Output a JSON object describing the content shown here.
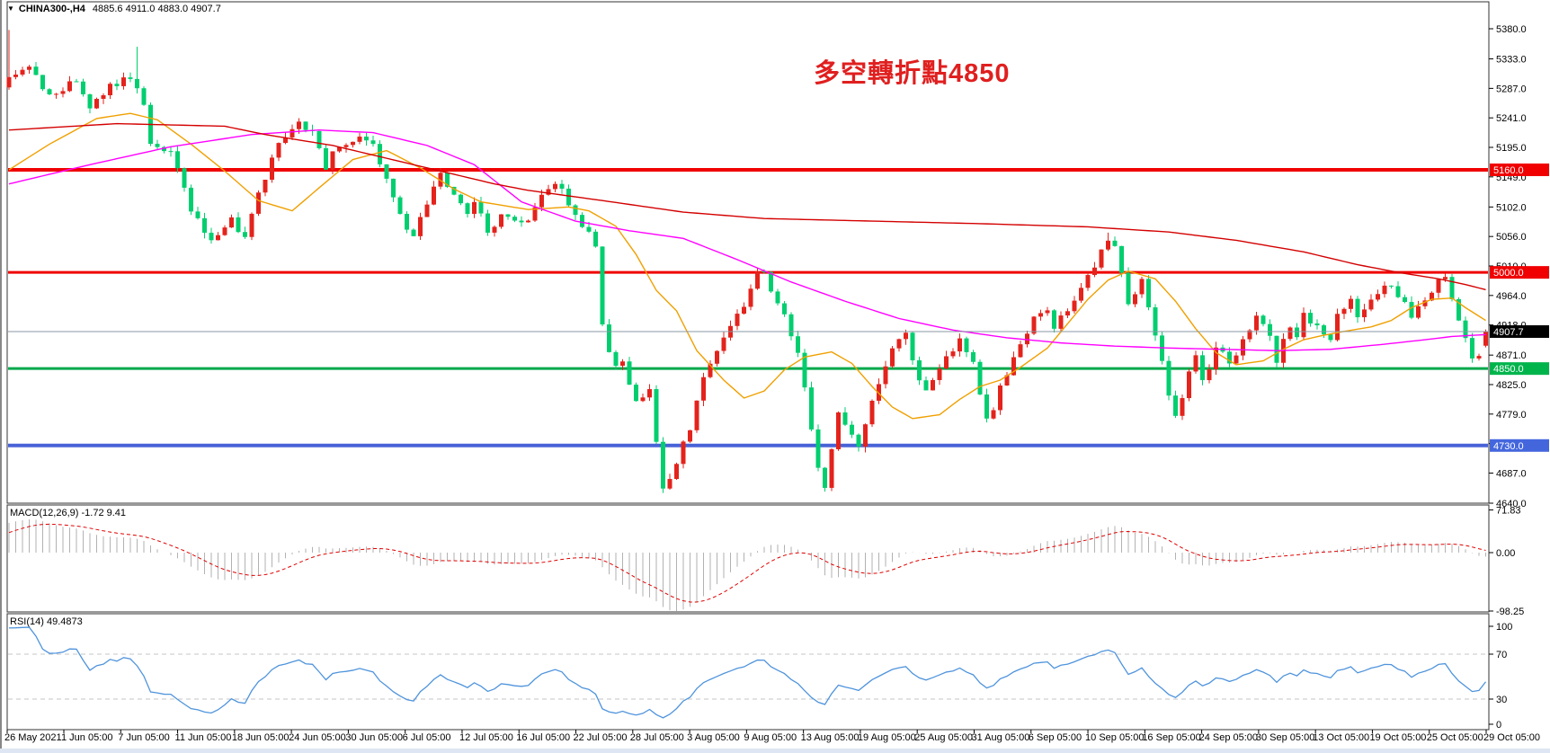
{
  "header": {
    "symbol": "CHINA300-,H4",
    "ohlc": "4885.6 4911.0 4883.0 4907.7",
    "dropdown_icon": "symbol-dropdown"
  },
  "annotation": {
    "text": "多空轉折點4850",
    "color": "#e01f1f"
  },
  "colors": {
    "candle_up": "#e3231c",
    "candle_down": "#00ce6f",
    "ma_fast": "#f0a000",
    "ma_mid": "#ff00ff",
    "ma_slow": "#d40000",
    "macd_hist": "#b2b2b2",
    "macd_signal": "#e00000",
    "rsi_line": "#4f94dc",
    "guide_dash": "#c4c4c4",
    "panel_border": "#333333",
    "axis_text": "#000000",
    "bottom_strip": "#dde6f2"
  },
  "chart_data": {
    "type": "candlestick",
    "symbol": "CHINA300-",
    "timeframe": "H4",
    "last_candle": {
      "open": 4885.6,
      "high": 4911.0,
      "low": 4883.0,
      "close": 4907.7
    },
    "current_price": {
      "value": 4907.7,
      "label": "4907.7",
      "line_color": "#8897a6",
      "badge_bg": "#000000",
      "badge_fg": "#ffffff"
    },
    "price_axis": {
      "ticks": [
        5380,
        5333,
        5287,
        5241,
        5195,
        5149,
        5102,
        5056,
        5010,
        4964,
        4918,
        4871,
        4825,
        4779,
        4733,
        4687,
        4640
      ],
      "top_value": 5380,
      "bottom_value": 4640
    },
    "levels": [
      {
        "value": 5160.0,
        "label": "5160.0",
        "line_color": "#f00000",
        "line_width": 4,
        "badge_bg": "#f00000",
        "badge_fg": "#ffffff"
      },
      {
        "value": 5000.0,
        "label": "5000.0",
        "line_color": "#f00000",
        "line_width": 3,
        "badge_bg": "#f00000",
        "badge_fg": "#ffffff"
      },
      {
        "value": 4850.0,
        "label": "4850.0",
        "line_color": "#00a84a",
        "line_width": 3,
        "badge_bg": "#00b44c",
        "badge_fg": "#ffffff"
      },
      {
        "value": 4730.0,
        "label": "4730.0",
        "line_color": "#4862d8",
        "line_width": 4,
        "badge_bg": "#4466dd",
        "badge_fg": "#ffffff"
      }
    ],
    "x_labels": [
      "26 May 2021",
      "1 Jun 05:00",
      "7 Jun 05:00",
      "11 Jun 05:00",
      "18 Jun 05:00",
      "24 Jun 05:00",
      "30 Jun 05:00",
      "6 Jul 05:00",
      "12 Jul 05:00",
      "16 Jul 05:00",
      "22 Jul 05:00",
      "28 Jul 05:00",
      "3 Aug 05:00",
      "9 Aug 05:00",
      "13 Aug 05:00",
      "19 Aug 05:00",
      "25 Aug 05:00",
      "31 Aug 05:00",
      "6 Sep 05:00",
      "10 Sep 05:00",
      "16 Sep 05:00",
      "24 Sep 05:00",
      "30 Sep 05:00",
      "13 Oct 05:00",
      "19 Oct 05:00",
      "25 Oct 05:00",
      "29 Oct 05:00"
    ],
    "candle_count": 220,
    "price_path": [
      [
        0,
        5300
      ],
      [
        3,
        5318
      ],
      [
        6,
        5275
      ],
      [
        10,
        5300
      ],
      [
        12,
        5252
      ],
      [
        15,
        5290
      ],
      [
        18,
        5305
      ],
      [
        20,
        5265
      ],
      [
        21,
        5200
      ],
      [
        24,
        5190
      ],
      [
        27,
        5100
      ],
      [
        30,
        5050
      ],
      [
        33,
        5080
      ],
      [
        35,
        5055
      ],
      [
        37,
        5120
      ],
      [
        40,
        5200
      ],
      [
        43,
        5240
      ],
      [
        45,
        5215
      ],
      [
        47,
        5165
      ],
      [
        49,
        5200
      ],
      [
        52,
        5215
      ],
      [
        54,
        5195
      ],
      [
        56,
        5140
      ],
      [
        58,
        5085
      ],
      [
        60,
        5055
      ],
      [
        62,
        5110
      ],
      [
        64,
        5150
      ],
      [
        66,
        5125
      ],
      [
        68,
        5090
      ],
      [
        69,
        5115
      ],
      [
        71,
        5060
      ],
      [
        73,
        5095
      ],
      [
        75,
        5075
      ],
      [
        77,
        5082
      ],
      [
        79,
        5120
      ],
      [
        81,
        5140
      ],
      [
        83,
        5110
      ],
      [
        85,
        5070
      ],
      [
        87,
        5045
      ],
      [
        88,
        4915
      ],
      [
        89,
        4880
      ],
      [
        90,
        4860
      ],
      [
        91,
        4855
      ],
      [
        93,
        4805
      ],
      [
        95,
        4815
      ],
      [
        97,
        4668
      ],
      [
        99,
        4700
      ],
      [
        101,
        4760
      ],
      [
        103,
        4840
      ],
      [
        105,
        4880
      ],
      [
        107,
        4915
      ],
      [
        109,
        4950
      ],
      [
        111,
        4995
      ],
      [
        112,
        5005
      ],
      [
        113,
        4975
      ],
      [
        115,
        4930
      ],
      [
        117,
        4870
      ],
      [
        118,
        4820
      ],
      [
        119,
        4750
      ],
      [
        120,
        4695
      ],
      [
        121,
        4670
      ],
      [
        122,
        4720
      ],
      [
        123,
        4780
      ],
      [
        124,
        4760
      ],
      [
        126,
        4730
      ],
      [
        128,
        4795
      ],
      [
        129,
        4830
      ],
      [
        131,
        4880
      ],
      [
        133,
        4900
      ],
      [
        134,
        4860
      ],
      [
        136,
        4810
      ],
      [
        137,
        4830
      ],
      [
        139,
        4865
      ],
      [
        141,
        4895
      ],
      [
        143,
        4855
      ],
      [
        145,
        4775
      ],
      [
        146,
        4790
      ],
      [
        148,
        4845
      ],
      [
        150,
        4890
      ],
      [
        152,
        4930
      ],
      [
        154,
        4940
      ],
      [
        155,
        4915
      ],
      [
        157,
        4945
      ],
      [
        159,
        4975
      ],
      [
        161,
        5010
      ],
      [
        162,
        5035
      ],
      [
        163,
        5050
      ],
      [
        164,
        5040
      ],
      [
        165,
        5005
      ],
      [
        166,
        4955
      ],
      [
        168,
        4985
      ],
      [
        169,
        4950
      ],
      [
        170,
        4900
      ],
      [
        171,
        4862
      ],
      [
        172,
        4810
      ],
      [
        173,
        4780
      ],
      [
        174,
        4800
      ],
      [
        175,
        4840
      ],
      [
        176,
        4865
      ],
      [
        177,
        4830
      ],
      [
        178,
        4855
      ],
      [
        179,
        4885
      ],
      [
        181,
        4855
      ],
      [
        183,
        4895
      ],
      [
        185,
        4935
      ],
      [
        186,
        4925
      ],
      [
        187,
        4895
      ],
      [
        188,
        4865
      ],
      [
        189,
        4890
      ],
      [
        190,
        4920
      ],
      [
        191,
        4895
      ],
      [
        192,
        4935
      ],
      [
        194,
        4915
      ],
      [
        196,
        4890
      ],
      [
        197,
        4930
      ],
      [
        199,
        4955
      ],
      [
        200,
        4935
      ],
      [
        202,
        4960
      ],
      [
        204,
        4985
      ],
      [
        205,
        4975
      ],
      [
        206,
        4960
      ],
      [
        208,
        4935
      ],
      [
        210,
        4960
      ],
      [
        212,
        4985
      ],
      [
        213,
        4990
      ],
      [
        214,
        4960
      ],
      [
        215,
        4930
      ],
      [
        216,
        4900
      ],
      [
        217,
        4870
      ],
      [
        218,
        4865
      ],
      [
        219,
        4907.7
      ]
    ],
    "pre_path": [
      [
        -104,
        5270
      ],
      [
        -80,
        5330
      ],
      [
        -60,
        5150
      ],
      [
        -40,
        5040
      ],
      [
        -24,
        5080
      ],
      [
        -12,
        5080
      ],
      [
        -4,
        5250
      ]
    ],
    "wick_overrides": [
      [
        0,
        "h",
        5378
      ],
      [
        19,
        "h",
        5352
      ],
      [
        97,
        "l",
        4656
      ],
      [
        121,
        "l",
        4658
      ],
      [
        163,
        "h",
        5062
      ],
      [
        213,
        "h",
        4998
      ]
    ],
    "moving_averages": [
      {
        "name": "ma-fast",
        "color": "#f0a000",
        "points": [
          [
            0,
            5160
          ],
          [
            6,
            5200
          ],
          [
            13,
            5240
          ],
          [
            18,
            5248
          ],
          [
            22,
            5238
          ],
          [
            27,
            5200
          ],
          [
            32,
            5158
          ],
          [
            37,
            5112
          ],
          [
            42,
            5096
          ],
          [
            46,
            5132
          ],
          [
            51,
            5176
          ],
          [
            56,
            5190
          ],
          [
            61,
            5163
          ],
          [
            66,
            5130
          ],
          [
            70,
            5110
          ],
          [
            77,
            5098
          ],
          [
            83,
            5102
          ],
          [
            86,
            5096
          ],
          [
            90,
            5072
          ],
          [
            93,
            5028
          ],
          [
            96,
            4972
          ],
          [
            99,
            4940
          ],
          [
            102,
            4878
          ],
          [
            106,
            4832
          ],
          [
            109,
            4804
          ],
          [
            112,
            4815
          ],
          [
            115,
            4848
          ],
          [
            118,
            4868
          ],
          [
            122,
            4876
          ],
          [
            125,
            4858
          ],
          [
            128,
            4822
          ],
          [
            131,
            4790
          ],
          [
            134,
            4772
          ],
          [
            138,
            4778
          ],
          [
            141,
            4802
          ],
          [
            144,
            4822
          ],
          [
            147,
            4832
          ],
          [
            150,
            4852
          ],
          [
            154,
            4882
          ],
          [
            157,
            4920
          ],
          [
            160,
            4958
          ],
          [
            163,
            4988
          ],
          [
            166,
            5002
          ],
          [
            170,
            4990
          ],
          [
            173,
            4955
          ],
          [
            176,
            4912
          ],
          [
            179,
            4875
          ],
          [
            182,
            4856
          ],
          [
            186,
            4862
          ],
          [
            189,
            4880
          ],
          [
            192,
            4895
          ],
          [
            195,
            4902
          ],
          [
            198,
            4908
          ],
          [
            202,
            4915
          ],
          [
            205,
            4925
          ],
          [
            208,
            4945
          ],
          [
            211,
            4958
          ],
          [
            214,
            4960
          ],
          [
            216,
            4945
          ],
          [
            219,
            4925
          ]
        ]
      },
      {
        "name": "ma-mid",
        "color": "#ff00ff",
        "points": [
          [
            0,
            5138
          ],
          [
            12,
            5168
          ],
          [
            24,
            5196
          ],
          [
            36,
            5215
          ],
          [
            46,
            5222
          ],
          [
            54,
            5218
          ],
          [
            62,
            5198
          ],
          [
            69,
            5168
          ],
          [
            76,
            5110
          ],
          [
            84,
            5080
          ],
          [
            92,
            5065
          ],
          [
            100,
            5053
          ],
          [
            108,
            5020
          ],
          [
            116,
            4985
          ],
          [
            124,
            4955
          ],
          [
            132,
            4928
          ],
          [
            140,
            4910
          ],
          [
            148,
            4898
          ],
          [
            156,
            4890
          ],
          [
            164,
            4885
          ],
          [
            172,
            4882
          ],
          [
            180,
            4880
          ],
          [
            188,
            4878
          ],
          [
            196,
            4880
          ],
          [
            204,
            4888
          ],
          [
            210,
            4895
          ],
          [
            214,
            4900
          ],
          [
            219,
            4903
          ]
        ]
      },
      {
        "name": "ma-slow",
        "color": "#d40000",
        "points": [
          [
            0,
            5222
          ],
          [
            16,
            5232
          ],
          [
            32,
            5228
          ],
          [
            38,
            5215
          ],
          [
            48,
            5198
          ],
          [
            56,
            5178
          ],
          [
            64,
            5158
          ],
          [
            72,
            5138
          ],
          [
            77,
            5128
          ],
          [
            88,
            5112
          ],
          [
            100,
            5094
          ],
          [
            112,
            5084
          ],
          [
            128,
            5080
          ],
          [
            144,
            5076
          ],
          [
            160,
            5071
          ],
          [
            172,
            5063
          ],
          [
            182,
            5050
          ],
          [
            192,
            5032
          ],
          [
            200,
            5012
          ],
          [
            206,
            5000
          ],
          [
            212,
            4990
          ],
          [
            216,
            4981
          ],
          [
            219,
            4973
          ]
        ]
      }
    ],
    "macd": {
      "name": "MACD(12,26,9)",
      "current": "-1.72 9.41",
      "fast": 12,
      "slow": 26,
      "signal": 9,
      "axis_ticks": [
        "71.83",
        "0.00",
        "-98.25"
      ],
      "min": -98.25,
      "max": 71.83
    },
    "rsi": {
      "name": "RSI(14)",
      "current": "49.4873",
      "period": 14,
      "axis_ticks": [
        "100",
        "70",
        "30",
        "0"
      ],
      "guides": [
        70,
        30
      ]
    }
  }
}
